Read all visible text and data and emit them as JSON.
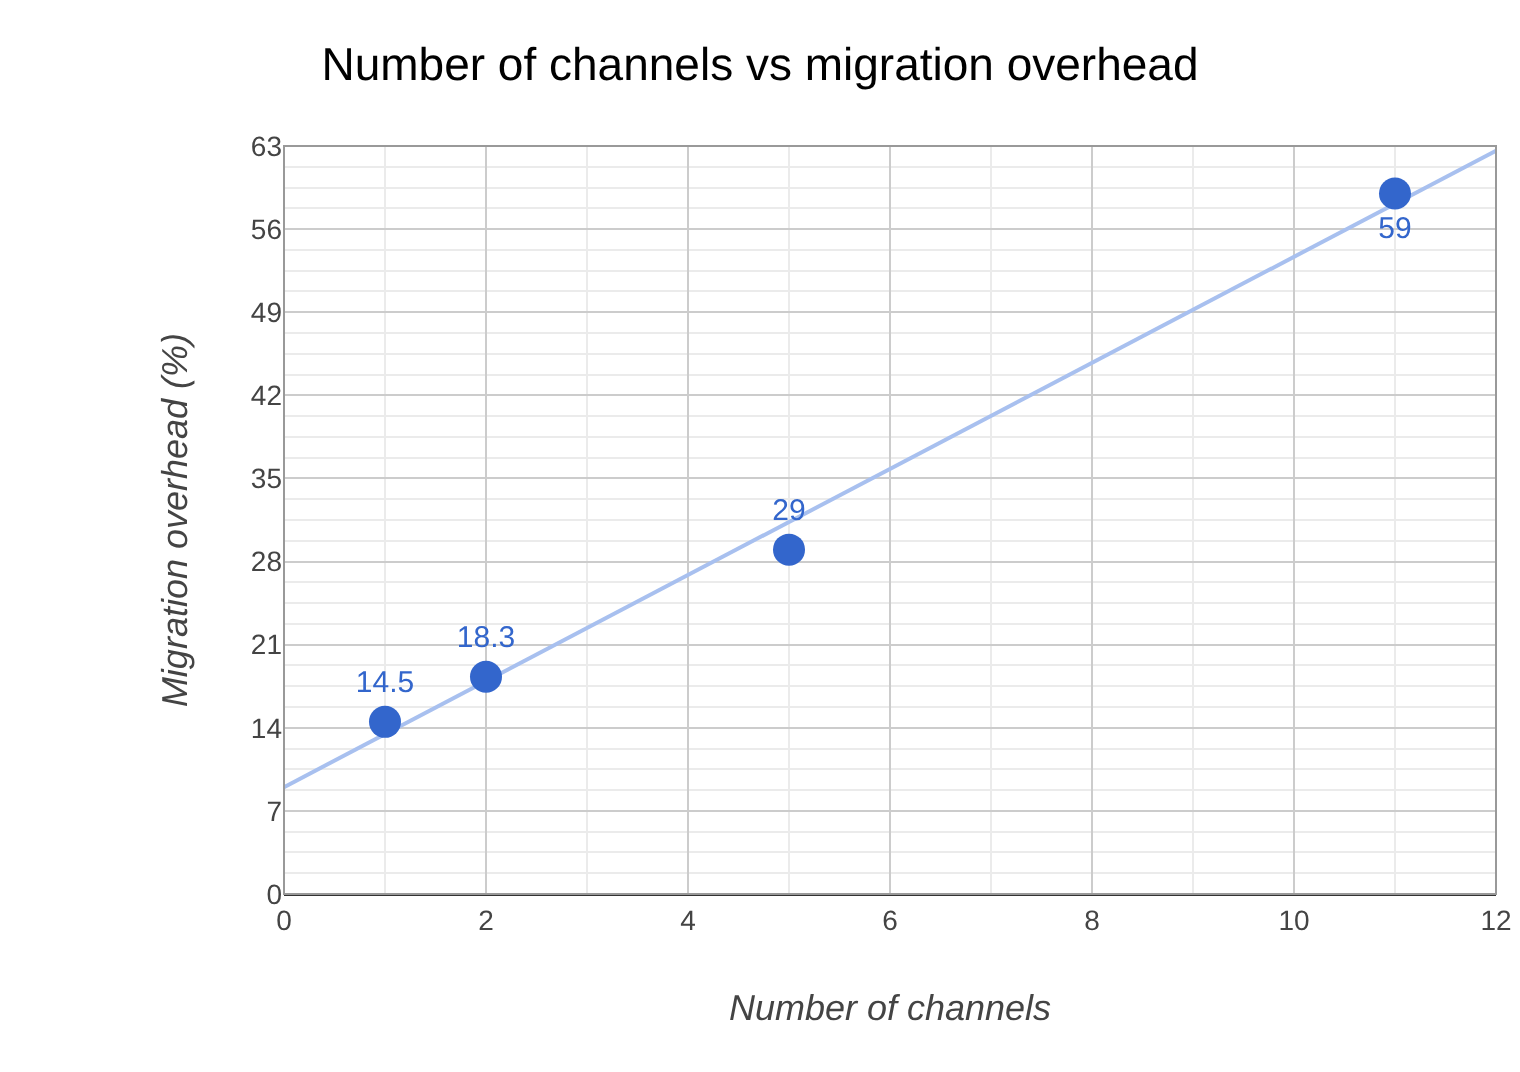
{
  "chart_data": {
    "type": "scatter",
    "title": "Number of channels vs migration overhead",
    "xlabel": "Number of channels",
    "ylabel": "Migration overhead (%)",
    "x": [
      1,
      2,
      5,
      11
    ],
    "series": [
      {
        "color": "#3366cc",
        "values": [
          14.5,
          18.3,
          29,
          59
        ],
        "value_labels": [
          "14.5",
          "18.3",
          "29",
          "59"
        ],
        "marker": "circle"
      },
      {
        "type": "line",
        "color": "#a8c0ef",
        "x": [
          0,
          12
        ],
        "values": [
          9,
          62.6
        ],
        "marker": "none"
      }
    ],
    "xlim": [
      0,
      12
    ],
    "xticks": [
      0,
      2,
      4,
      6,
      8,
      10,
      12
    ],
    "ylim": [
      0,
      63
    ],
    "yticks": [
      0,
      7,
      14,
      21,
      28,
      35,
      42,
      49,
      56,
      63
    ],
    "grid": true
  }
}
